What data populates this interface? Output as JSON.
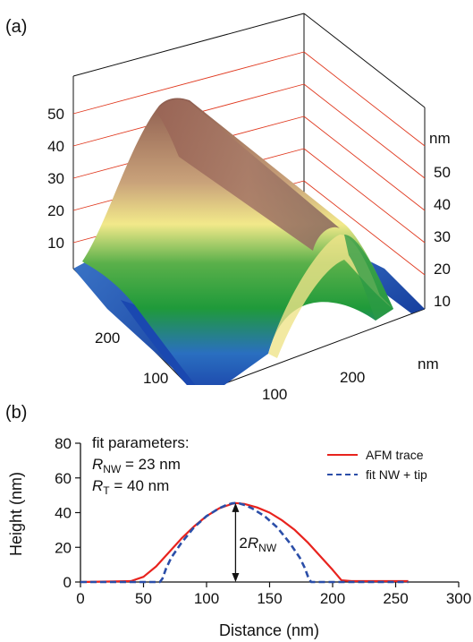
{
  "panel_a": {
    "label": "(a)",
    "unit_z": "nm",
    "unit_x": "nm",
    "z_ticks_left": [
      "50",
      "40",
      "30",
      "20",
      "10"
    ],
    "z_ticks_right": [
      "50",
      "40",
      "30",
      "20",
      "10"
    ],
    "x_ticks": [
      "100",
      "200"
    ],
    "y_ticks": [
      "200",
      "100"
    ],
    "colors": {
      "grid_line": "#e0391f",
      "low": "#1a4fb0",
      "mid": "#1f9a3a",
      "high_a": "#f2e98a",
      "high_b": "#a06a58",
      "top": "#8d5c4f"
    }
  },
  "panel_b": {
    "label": "(b)",
    "fit_heading": "fit parameters:",
    "fit_rnw_sym": "R",
    "fit_rnw_sub": "NW",
    "fit_rnw_val": " = 23 nm",
    "fit_rt_sym": "R",
    "fit_rt_sub": "T",
    "fit_rt_val": " = 40 nm",
    "arrow_pre": "2",
    "arrow_sym": "R",
    "arrow_sub": "NW"
  },
  "chart_data": {
    "type": "line",
    "xlabel": "Distance (nm)",
    "ylabel": "Height (nm)",
    "xlim": [
      0,
      300
    ],
    "ylim": [
      0,
      80
    ],
    "x_ticks": [
      0,
      50,
      100,
      150,
      200,
      250,
      300
    ],
    "y_ticks": [
      0,
      20,
      40,
      60,
      80
    ],
    "legend_position": "right",
    "series": [
      {
        "name": "AFM trace",
        "color": "#e8231e",
        "style": "solid",
        "x": [
          0,
          40,
          50,
          60,
          70,
          80,
          90,
          100,
          110,
          120,
          123,
          130,
          140,
          150,
          160,
          170,
          180,
          190,
          200,
          207,
          215,
          260
        ],
        "y": [
          0,
          0.5,
          3,
          9,
          17,
          25,
          32,
          38,
          42.5,
          45,
          45.5,
          45,
          43,
          40,
          35.5,
          30,
          23,
          15,
          7,
          1,
          0.5,
          0.5
        ]
      },
      {
        "name": "fit NW + tip",
        "color": "#2b4ea8",
        "style": "dashed",
        "x": [
          0,
          63,
          65,
          68,
          72,
          80,
          90,
          100,
          110,
          115,
          120,
          123,
          126,
          131,
          136,
          146,
          156,
          166,
          174,
          178,
          181,
          183,
          260
        ],
        "y": [
          0,
          0,
          2,
          8,
          14,
          22.5,
          31.5,
          38,
          42.5,
          44.2,
          45.3,
          45.5,
          45.3,
          44.2,
          42.5,
          38,
          31.5,
          22.5,
          14,
          8,
          2,
          0,
          0
        ]
      }
    ]
  }
}
